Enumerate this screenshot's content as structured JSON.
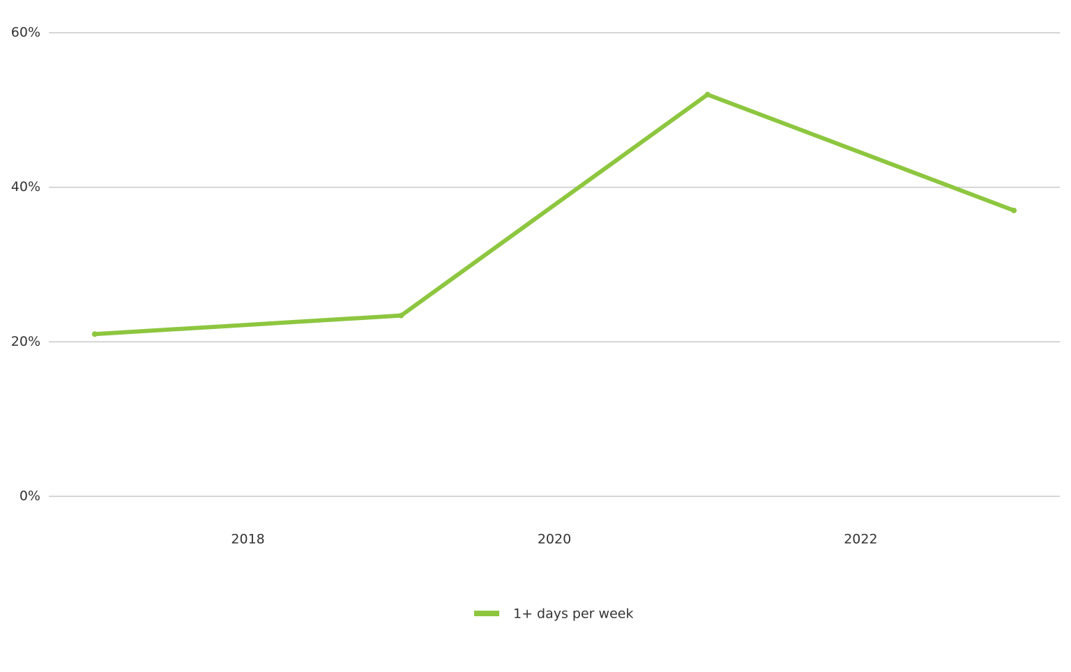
{
  "chart_data": {
    "type": "line",
    "x": [
      2017,
      2019,
      2021,
      2023
    ],
    "series": [
      {
        "name": "1+ days per week",
        "color": "#8dc63f",
        "values": [
          21,
          23.4,
          52,
          37
        ]
      }
    ],
    "xlim": [
      2016.7,
      2023.3
    ],
    "xticks": [
      2018,
      2020,
      2022
    ],
    "ylim": [
      0,
      60
    ],
    "yticks": [
      {
        "value": 0,
        "label": "0%"
      },
      {
        "value": 20,
        "label": "20%"
      },
      {
        "value": 40,
        "label": "40%"
      },
      {
        "value": 60,
        "label": "60%"
      }
    ],
    "grid": true,
    "legend": "bottom"
  }
}
